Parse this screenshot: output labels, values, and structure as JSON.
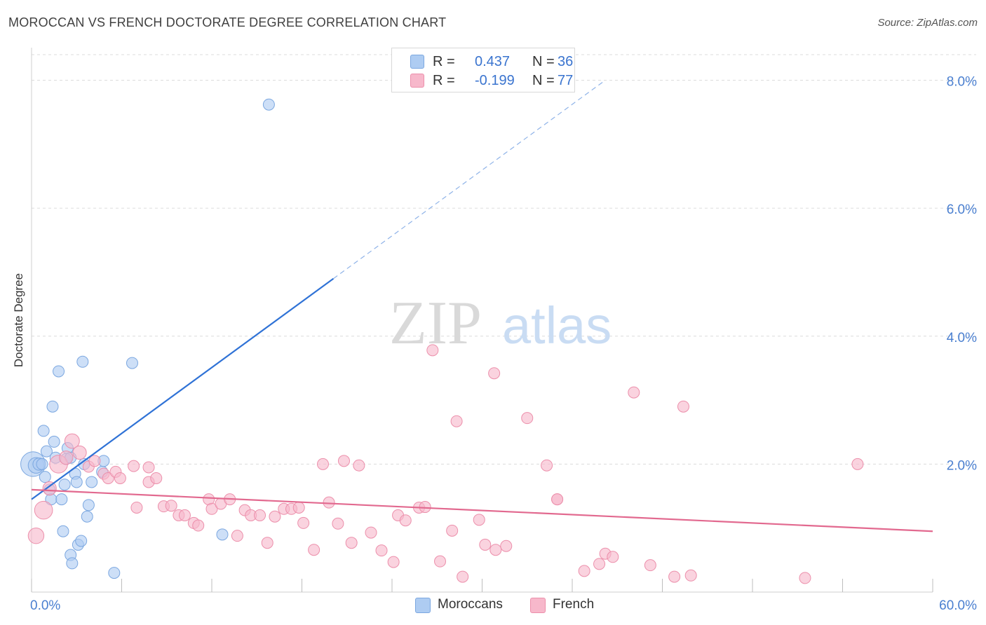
{
  "title": "MOROCCAN VS FRENCH DOCTORATE DEGREE CORRELATION CHART",
  "source": "Source: ZipAtlas.com",
  "watermark": {
    "zip": "ZIP",
    "atlas": "atlas"
  },
  "colors": {
    "blue_fill": "#aeccf2",
    "blue_stroke": "#7ba7e0",
    "blue_line": "#2f72d6",
    "pink_fill": "#f7b8cb",
    "pink_stroke": "#ec8fab",
    "pink_line": "#e2698f",
    "axis_label": "#4a7fd0",
    "grid": "#dcdcdc"
  },
  "legend_top": [
    {
      "r_label": "R =",
      "r_value": "0.437",
      "n_label": "N =",
      "n_value": "36",
      "color": "#aeccf2",
      "border": "#7ba7e0"
    },
    {
      "r_label": "R =",
      "r_value": "-0.199",
      "n_label": "N =",
      "n_value": "77",
      "color": "#f7b8cb",
      "border": "#ec8fab"
    }
  ],
  "legend_bottom": [
    {
      "label": "Moroccans",
      "color": "#aeccf2",
      "border": "#7ba7e0"
    },
    {
      "label": "French",
      "color": "#f7b8cb",
      "border": "#ec8fab"
    }
  ],
  "chart_data": {
    "type": "scatter",
    "title": "MOROCCAN VS FRENCH DOCTORATE DEGREE CORRELATION CHART",
    "xlabel": "",
    "ylabel": "Doctorate Degree",
    "xlim": [
      0,
      60
    ],
    "ylim": [
      0,
      8.4
    ],
    "x_tick_labels": [
      {
        "value": 0,
        "label": "0.0%"
      },
      {
        "value": 60,
        "label": "60.0%"
      }
    ],
    "y_tick_labels": [
      {
        "value": 2,
        "label": "2.0%"
      },
      {
        "value": 4,
        "label": "4.0%"
      },
      {
        "value": 6,
        "label": "6.0%"
      },
      {
        "value": 8,
        "label": "8.0%"
      }
    ],
    "x_minor_ticks": [
      0,
      6,
      12,
      18,
      24,
      30,
      36,
      42,
      48,
      54,
      60
    ],
    "series": [
      {
        "name": "Moroccans",
        "points": [
          [
            0.1,
            2.0,
            2.2
          ],
          [
            0.3,
            1.98,
            1.4
          ],
          [
            0.5,
            2.0,
            1.1
          ],
          [
            0.7,
            2.0,
            1.0
          ],
          [
            0.8,
            2.52,
            1.0
          ],
          [
            0.9,
            1.8,
            1.0
          ],
          [
            1.0,
            2.2,
            1.0
          ],
          [
            1.2,
            1.6,
            1.0
          ],
          [
            1.3,
            1.45,
            1.0
          ],
          [
            1.4,
            2.9,
            1.0
          ],
          [
            1.5,
            2.35,
            1.0
          ],
          [
            1.6,
            2.1,
            1.0
          ],
          [
            1.8,
            3.45,
            1.0
          ],
          [
            2.0,
            1.45,
            1.0
          ],
          [
            2.1,
            0.95,
            1.0
          ],
          [
            2.2,
            1.68,
            1.0
          ],
          [
            2.3,
            2.08,
            1.0
          ],
          [
            2.4,
            2.25,
            1.0
          ],
          [
            2.6,
            0.58,
            1.0
          ],
          [
            2.7,
            0.45,
            1.0
          ],
          [
            2.9,
            1.85,
            1.0
          ],
          [
            3.0,
            1.72,
            1.0
          ],
          [
            3.1,
            0.74,
            1.0
          ],
          [
            3.3,
            0.8,
            1.0
          ],
          [
            3.4,
            3.6,
            1.0
          ],
          [
            3.5,
            2.0,
            1.0
          ],
          [
            3.7,
            1.18,
            1.0
          ],
          [
            3.8,
            1.36,
            1.0
          ],
          [
            4.0,
            1.72,
            1.0
          ],
          [
            4.7,
            1.88,
            1.0
          ],
          [
            4.8,
            2.05,
            1.0
          ],
          [
            5.5,
            0.3,
            1.0
          ],
          [
            6.7,
            3.58,
            1.0
          ],
          [
            12.7,
            0.9,
            1.0
          ],
          [
            15.8,
            7.62,
            1.0
          ],
          [
            2.6,
            2.1,
            1.0
          ]
        ],
        "trend_solid": [
          [
            0,
            1.45
          ],
          [
            20.1,
            4.9
          ]
        ],
        "trend_dashed": [
          [
            20.1,
            4.9
          ],
          [
            38.2,
            8.0
          ]
        ]
      },
      {
        "name": "French",
        "points": [
          [
            0.3,
            0.88,
            1.4
          ],
          [
            0.8,
            1.28,
            1.6
          ],
          [
            1.2,
            1.62,
            1.2
          ],
          [
            1.8,
            2.0,
            1.6
          ],
          [
            2.3,
            2.1,
            1.2
          ],
          [
            2.7,
            2.36,
            1.3
          ],
          [
            3.2,
            2.18,
            1.2
          ],
          [
            3.8,
            1.96,
            1.0
          ],
          [
            4.2,
            2.05,
            1.0
          ],
          [
            4.8,
            1.85,
            1.0
          ],
          [
            5.1,
            1.78,
            1.0
          ],
          [
            5.6,
            1.88,
            1.0
          ],
          [
            5.9,
            1.78,
            1.0
          ],
          [
            6.8,
            1.97,
            1.0
          ],
          [
            7.0,
            1.32,
            1.0
          ],
          [
            7.8,
            1.95,
            1.0
          ],
          [
            7.8,
            1.72,
            1.0
          ],
          [
            8.3,
            1.78,
            1.0
          ],
          [
            8.8,
            1.34,
            1.0
          ],
          [
            9.3,
            1.35,
            1.0
          ],
          [
            9.8,
            1.2,
            1.0
          ],
          [
            10.2,
            1.2,
            1.0
          ],
          [
            10.8,
            1.08,
            1.0
          ],
          [
            11.1,
            1.04,
            1.0
          ],
          [
            11.8,
            1.45,
            1.0
          ],
          [
            12.0,
            1.3,
            1.0
          ],
          [
            12.6,
            1.38,
            1.0
          ],
          [
            13.2,
            1.45,
            1.0
          ],
          [
            13.7,
            0.88,
            1.0
          ],
          [
            14.2,
            1.28,
            1.0
          ],
          [
            14.6,
            1.2,
            1.0
          ],
          [
            15.2,
            1.2,
            1.0
          ],
          [
            15.7,
            0.77,
            1.0
          ],
          [
            16.2,
            1.18,
            1.0
          ],
          [
            16.8,
            1.3,
            1.0
          ],
          [
            17.3,
            1.3,
            1.0
          ],
          [
            17.8,
            1.32,
            1.0
          ],
          [
            18.1,
            1.08,
            1.0
          ],
          [
            18.8,
            0.66,
            1.0
          ],
          [
            19.4,
            2.0,
            1.0
          ],
          [
            19.8,
            1.4,
            1.0
          ],
          [
            20.4,
            1.07,
            1.0
          ],
          [
            20.8,
            2.05,
            1.0
          ],
          [
            21.3,
            0.77,
            1.0
          ],
          [
            21.8,
            1.98,
            1.0
          ],
          [
            22.6,
            0.93,
            1.0
          ],
          [
            23.3,
            0.65,
            1.0
          ],
          [
            24.1,
            0.47,
            1.0
          ],
          [
            24.4,
            1.2,
            1.0
          ],
          [
            24.9,
            1.12,
            1.0
          ],
          [
            25.8,
            1.32,
            1.0
          ],
          [
            26.2,
            1.33,
            1.0
          ],
          [
            26.7,
            3.78,
            1.0
          ],
          [
            27.2,
            0.48,
            1.0
          ],
          [
            28.0,
            0.96,
            1.0
          ],
          [
            28.3,
            2.67,
            1.0
          ],
          [
            28.7,
            0.24,
            1.0
          ],
          [
            29.8,
            1.13,
            1.0
          ],
          [
            30.2,
            0.74,
            1.0
          ],
          [
            30.8,
            3.42,
            1.0
          ],
          [
            30.9,
            0.66,
            1.0
          ],
          [
            31.6,
            0.72,
            1.0
          ],
          [
            33.0,
            2.72,
            1.0
          ],
          [
            34.3,
            1.98,
            1.0
          ],
          [
            35.0,
            1.45,
            1.0
          ],
          [
            36.8,
            0.33,
            1.0
          ],
          [
            37.8,
            0.44,
            1.0
          ],
          [
            38.2,
            0.6,
            1.0
          ],
          [
            38.7,
            0.55,
            1.0
          ],
          [
            40.1,
            3.12,
            1.0
          ],
          [
            41.2,
            0.42,
            1.0
          ],
          [
            42.8,
            0.24,
            1.0
          ],
          [
            43.4,
            2.9,
            1.0
          ],
          [
            43.9,
            0.26,
            1.0
          ],
          [
            51.5,
            0.22,
            1.0
          ],
          [
            55.0,
            2.0,
            1.0
          ],
          [
            35.0,
            1.45,
            1.0
          ]
        ],
        "trend_solid": [
          [
            0,
            1.6
          ],
          [
            60,
            0.95
          ]
        ]
      }
    ]
  }
}
